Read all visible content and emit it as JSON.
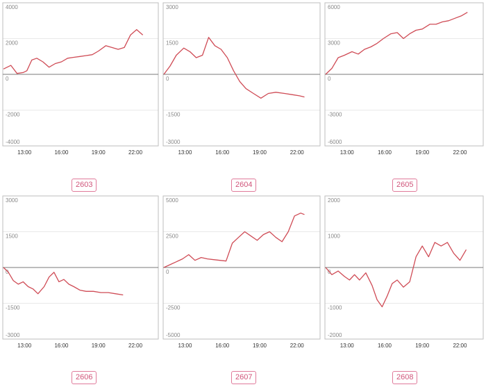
{
  "colors": {
    "line": "#cf4b55",
    "axis": "#7a7a7a",
    "grid": "#e9e9e9",
    "frame": "#bdbdbd",
    "tick": "#888888",
    "badge": "#d0557a"
  },
  "chart_data": [
    {
      "type": "line",
      "label": "2603",
      "yticks": [
        4000,
        2000,
        0,
        -2000,
        -4000
      ],
      "ylim": [
        -4000,
        4000
      ],
      "xticks": [
        "13:00",
        "16:00",
        "19:00",
        "22:00"
      ],
      "x": [
        11.3,
        11.9,
        12.4,
        12.9,
        13.2,
        13.6,
        14.0,
        14.5,
        15.0,
        15.5,
        16.0,
        16.5,
        17.0,
        17.5,
        18.0,
        18.5,
        19.0,
        19.6,
        20.1,
        20.6,
        21.1,
        21.6,
        22.1,
        22.6
      ],
      "values": [
        300,
        500,
        50,
        100,
        200,
        800,
        900,
        700,
        400,
        600,
        700,
        900,
        950,
        1000,
        1050,
        1100,
        1300,
        1600,
        1500,
        1400,
        1500,
        2200,
        2500,
        2200
      ],
      "series": [
        {
          "name": ""
        }
      ]
    },
    {
      "type": "line",
      "label": "2604",
      "yticks": [
        3000,
        1500,
        0,
        -1500,
        -3000
      ],
      "ylim": [
        -3000,
        3000
      ],
      "xticks": [
        "13:00",
        "16:00",
        "19:00",
        "22:00"
      ],
      "x": [
        11.3,
        11.8,
        12.3,
        12.9,
        13.4,
        13.9,
        14.4,
        14.9,
        15.4,
        15.9,
        16.4,
        16.9,
        17.4,
        17.9,
        18.5,
        19.1,
        19.7,
        20.3,
        21.0,
        21.6,
        22.2,
        22.6
      ],
      "values": [
        0,
        350,
        800,
        1100,
        950,
        700,
        800,
        1550,
        1200,
        1050,
        700,
        150,
        -300,
        -600,
        -800,
        -1000,
        -800,
        -750,
        -800,
        -850,
        -900,
        -950
      ],
      "series": [
        {
          "name": ""
        }
      ]
    },
    {
      "type": "line",
      "label": "2605",
      "yticks": [
        6000,
        3000,
        0,
        -3000,
        -6000
      ],
      "ylim": [
        -6000,
        6000
      ],
      "xticks": [
        "13:00",
        "16:00",
        "19:00",
        "22:00"
      ],
      "x": [
        11.3,
        11.8,
        12.3,
        12.8,
        13.4,
        13.9,
        14.4,
        14.9,
        15.4,
        15.9,
        16.5,
        17.0,
        17.5,
        18.0,
        18.5,
        19.0,
        19.6,
        20.1,
        20.6,
        21.1,
        21.6,
        22.1,
        22.6
      ],
      "values": [
        0,
        500,
        1400,
        1600,
        1900,
        1700,
        2100,
        2300,
        2600,
        3000,
        3400,
        3500,
        3000,
        3400,
        3700,
        3800,
        4200,
        4200,
        4400,
        4500,
        4700,
        4900,
        5200
      ],
      "series": [
        {
          "name": ""
        }
      ]
    },
    {
      "type": "line",
      "label": "2606",
      "yticks": [
        3000,
        1500,
        0,
        -1500,
        -3000
      ],
      "ylim": [
        -3000,
        3000
      ],
      "xticks": [
        "13:00",
        "16:00",
        "19:00",
        "22:00"
      ],
      "x": [
        11.3,
        11.7,
        12.1,
        12.5,
        12.9,
        13.3,
        13.7,
        14.1,
        14.6,
        15.0,
        15.4,
        15.8,
        16.2,
        16.6,
        17.0,
        17.5,
        18.0,
        18.6,
        19.2,
        19.8,
        20.4,
        21.0
      ],
      "values": [
        0,
        -200,
        -550,
        -700,
        -600,
        -800,
        -900,
        -1100,
        -800,
        -400,
        -200,
        -600,
        -500,
        -700,
        -800,
        -950,
        -1000,
        -1000,
        -1050,
        -1050,
        -1100,
        -1150
      ],
      "series": [
        {
          "name": ""
        }
      ]
    },
    {
      "type": "line",
      "label": "2607",
      "yticks": [
        5000,
        2500,
        0,
        -2500,
        -5000
      ],
      "ylim": [
        -5000,
        5000
      ],
      "xticks": [
        "13:00",
        "16:00",
        "19:00",
        "22:00"
      ],
      "x": [
        11.3,
        11.8,
        12.3,
        12.8,
        13.3,
        13.8,
        14.3,
        14.8,
        15.3,
        15.8,
        16.3,
        16.8,
        17.3,
        17.8,
        18.3,
        18.8,
        19.3,
        19.8,
        20.3,
        20.8,
        21.3,
        21.8,
        22.3,
        22.6
      ],
      "values": [
        0,
        200,
        400,
        600,
        900,
        500,
        700,
        600,
        550,
        500,
        450,
        1700,
        2100,
        2500,
        2200,
        1900,
        2300,
        2500,
        2100,
        1800,
        2500,
        3600,
        3800,
        3700
      ],
      "series": [
        {
          "name": ""
        }
      ]
    },
    {
      "type": "line",
      "label": "2608",
      "yticks": [
        2000,
        1000,
        0,
        -1000,
        -2000
      ],
      "ylim": [
        -2000,
        2000
      ],
      "xticks": [
        "13:00",
        "16:00",
        "19:00",
        "22:00"
      ],
      "x": [
        11.3,
        11.8,
        12.3,
        12.8,
        13.2,
        13.6,
        14.0,
        14.5,
        15.0,
        15.4,
        15.8,
        16.2,
        16.6,
        17.0,
        17.5,
        18.0,
        18.5,
        19.0,
        19.5,
        20.0,
        20.5,
        21.0,
        21.5,
        22.0,
        22.5
      ],
      "values": [
        0,
        -200,
        -100,
        -250,
        -350,
        -200,
        -350,
        -150,
        -500,
        -900,
        -1100,
        -800,
        -450,
        -350,
        -550,
        -400,
        300,
        600,
        300,
        700,
        600,
        700,
        400,
        200,
        500
      ],
      "series": [
        {
          "name": ""
        }
      ]
    }
  ]
}
